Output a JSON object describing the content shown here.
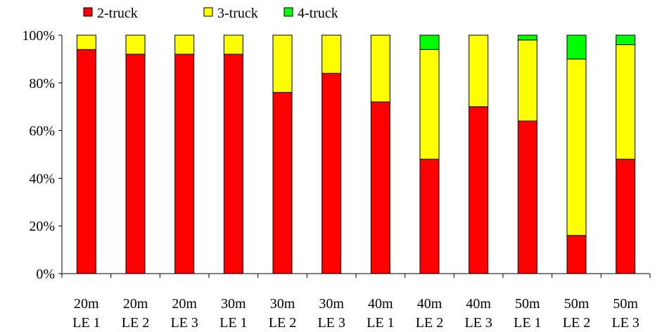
{
  "chart_data": {
    "type": "bar",
    "stacked": true,
    "percent": true,
    "title": "",
    "xlabel": "",
    "ylabel": "",
    "ylim": [
      0,
      100
    ],
    "yticks": [
      "0%",
      "20%",
      "40%",
      "60%",
      "80%",
      "100%"
    ],
    "ytick_values": [
      0,
      20,
      40,
      60,
      80,
      100
    ],
    "grid": false,
    "legend_position": "top-left",
    "categories": [
      [
        "20m",
        "LE 1"
      ],
      [
        "20m",
        "LE 2"
      ],
      [
        "20m",
        "LE 3"
      ],
      [
        "30m",
        "LE 1"
      ],
      [
        "30m",
        "LE 2"
      ],
      [
        "30m",
        "LE 3"
      ],
      [
        "40m",
        "LE 1"
      ],
      [
        "40m",
        "LE 2"
      ],
      [
        "40m",
        "LE 3"
      ],
      [
        "50m",
        "LE 1"
      ],
      [
        "50m",
        "LE 2"
      ],
      [
        "50m",
        "LE 3"
      ]
    ],
    "series": [
      {
        "name": "2-truck",
        "color": "#ff0000",
        "values": [
          94,
          92,
          92,
          92,
          76,
          84,
          72,
          48,
          70,
          64,
          16,
          48
        ]
      },
      {
        "name": "3-truck",
        "color": "#ffff00",
        "values": [
          6,
          8,
          8,
          8,
          24,
          16,
          28,
          46,
          30,
          34,
          74,
          48
        ]
      },
      {
        "name": "4-truck",
        "color": "#00ff00",
        "values": [
          0,
          0,
          0,
          0,
          0,
          0,
          0,
          6,
          0,
          2,
          10,
          4
        ]
      }
    ]
  }
}
